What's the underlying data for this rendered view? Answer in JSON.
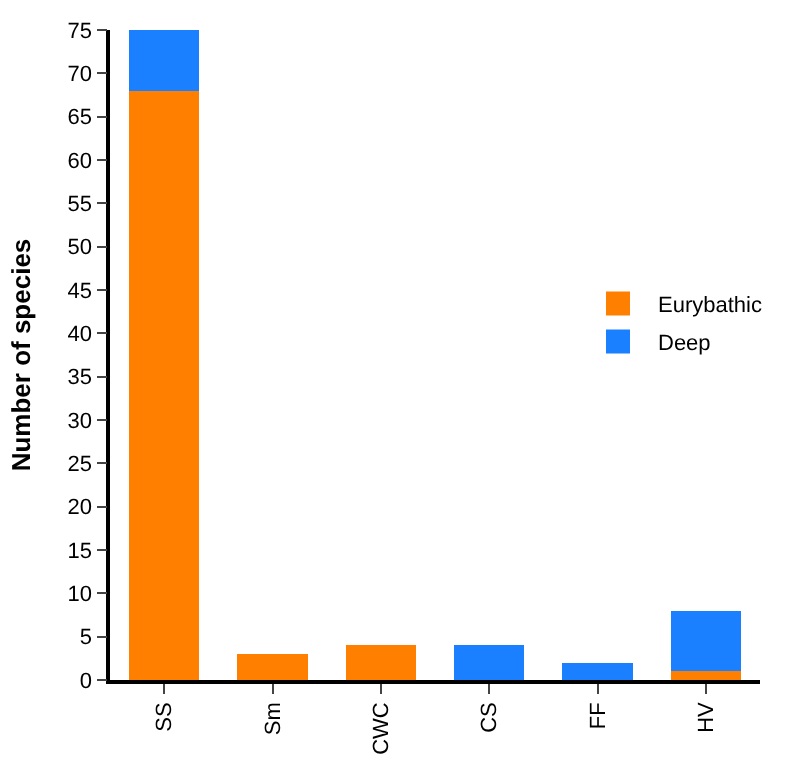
{
  "chart_data": {
    "type": "bar",
    "stacked": true,
    "ylabel": "Number of species",
    "categories": [
      "SS",
      "Sm",
      "CWC",
      "CS",
      "FF",
      "HV"
    ],
    "series": [
      {
        "name": "Eurybathic",
        "color": "#ff8000",
        "values": [
          68,
          3,
          4,
          0,
          0,
          1
        ]
      },
      {
        "name": "Deep",
        "color": "#1a80ff",
        "values": [
          7,
          0,
          0,
          4,
          2,
          7
        ]
      }
    ],
    "ylim": [
      0,
      75
    ],
    "yticks": [
      0,
      5,
      10,
      15,
      20,
      25,
      30,
      35,
      40,
      45,
      50,
      55,
      60,
      65,
      70,
      75
    ],
    "legend": "right"
  }
}
